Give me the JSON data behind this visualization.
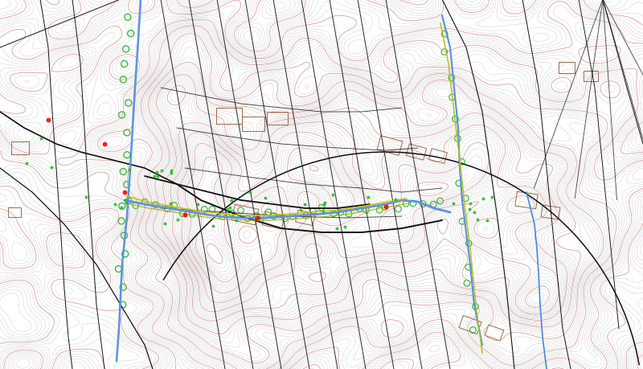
{
  "bg_color": "#ffffff",
  "contour_gray_color": "#909090",
  "contour_red_color": "#e06060",
  "road_color": "#111111",
  "water_color": "#4488dd",
  "water_color2": "#88aaee",
  "veg_color": "#22bb22",
  "building_color": "#996644",
  "yellow_color": "#ccbb00",
  "olive_color": "#aaaa00",
  "seed": 42,
  "figsize": [
    8.0,
    4.6
  ],
  "dpi": 100
}
